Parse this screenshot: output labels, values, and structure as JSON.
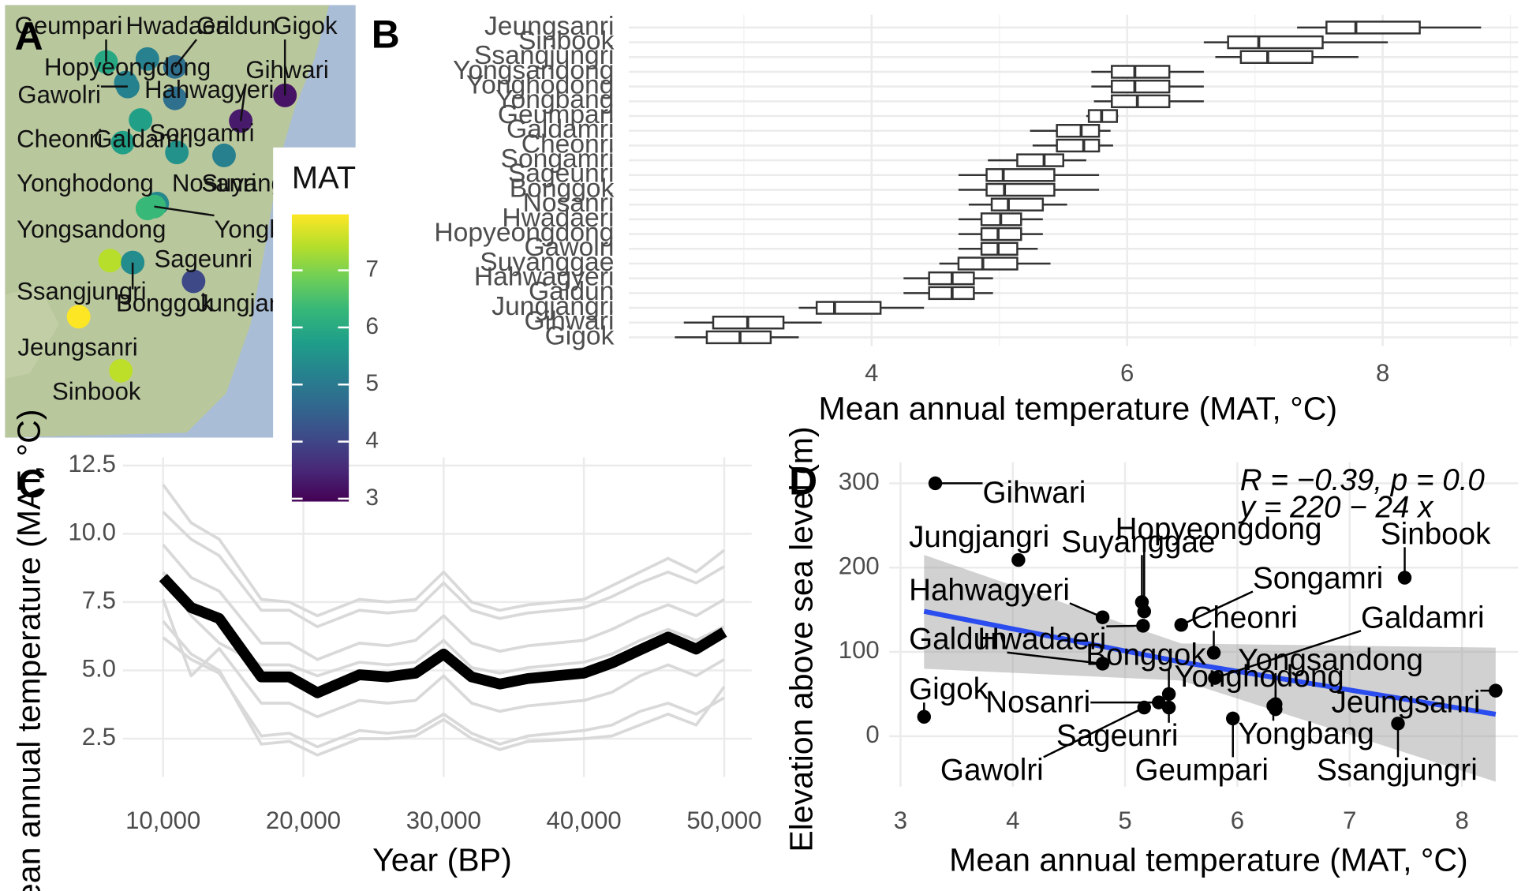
{
  "chart_data": [
    {
      "type": "map",
      "panel_label": "A",
      "legend_title": "MAT",
      "colorbar_lim": [
        2.95,
        7.98
      ],
      "colorbar_ticks": [
        3,
        4,
        5,
        6,
        7
      ],
      "sites": [
        "Geumpari",
        "Hwadaeri",
        "Galdun",
        "Gigok",
        "Hopyeongdong",
        "Gihwari",
        "Gawolri",
        "Hahwagyeri",
        "Cheonri",
        "Galdamri",
        "Songamri",
        "Yonghodong",
        "Nosanri",
        "Suyanggae",
        "Yongsandong",
        "Yongbang",
        "Sageunri",
        "Ssangjungri",
        "Bonggok",
        "Jungjangri",
        "Jeungsanri",
        "Sinbook"
      ]
    },
    {
      "type": "boxplot",
      "panel_label": "B",
      "x_label": "Mean annual temperature (MAT, °C)",
      "categories": [
        "Jeungsanri",
        "Sinbook",
        "Ssangjungri",
        "Yongsandong",
        "Yonghodong",
        "Yongbang",
        "Geumpari",
        "Galdamri",
        "Cheonri",
        "Songamri",
        "Sageunri",
        "Bonggok",
        "Nosanri",
        "Hwadaeri",
        "Hopyeongdong",
        "Gawolri",
        "Suyanggae",
        "Hahwagyeri",
        "Galdun",
        "Jungjangri",
        "Gihwari",
        "Gigok"
      ],
      "min": [
        7.33,
        6.6,
        6.69,
        5.72,
        5.72,
        5.74,
        5.68,
        5.24,
        5.26,
        4.91,
        4.68,
        4.68,
        4.76,
        4.68,
        4.68,
        4.68,
        4.53,
        4.25,
        4.25,
        3.43,
        2.53,
        2.46
      ],
      "q1": [
        7.56,
        6.79,
        6.89,
        5.88,
        5.88,
        5.88,
        5.7,
        5.45,
        5.45,
        5.14,
        4.9,
        4.9,
        4.94,
        4.86,
        4.86,
        4.86,
        4.68,
        4.45,
        4.45,
        3.57,
        2.76,
        2.71
      ],
      "median": [
        7.79,
        7.03,
        7.1,
        6.06,
        6.06,
        6.08,
        5.8,
        5.64,
        5.66,
        5.35,
        5.03,
        5.04,
        5.07,
        5.01,
        4.99,
        4.99,
        4.87,
        4.63,
        4.63,
        3.71,
        3.03,
        2.97
      ],
      "q3": [
        8.29,
        7.53,
        7.45,
        6.33,
        6.33,
        6.33,
        5.92,
        5.78,
        5.78,
        5.5,
        5.43,
        5.43,
        5.34,
        5.17,
        5.17,
        5.14,
        5.14,
        4.8,
        4.8,
        4.07,
        3.31,
        3.21
      ],
      "max": [
        8.77,
        8.04,
        7.81,
        6.6,
        6.6,
        6.6,
        5.93,
        5.87,
        5.89,
        5.68,
        5.78,
        5.78,
        5.53,
        5.34,
        5.34,
        5.3,
        5.4,
        4.95,
        4.95,
        4.41,
        3.61,
        3.43
      ],
      "xlim": [
        2.1,
        9.06
      ],
      "xticks": [
        4,
        6,
        8
      ],
      "minor_xticks": [
        3,
        5,
        7,
        9
      ],
      "grid": true
    },
    {
      "type": "line",
      "panel_label": "C",
      "x_label": "Year (BP)",
      "y_label": "Mean annual temperature (MAT, °C)",
      "x": [
        10000,
        12000,
        14000,
        17000,
        19000,
        21000,
        24000,
        26000,
        28000,
        30000,
        32000,
        34000,
        36000,
        40000,
        42000,
        44000,
        46000,
        48000,
        50000
      ],
      "series": [
        {
          "color": "#d9d9d9",
          "values": [
            11.8,
            10.4,
            9.8,
            7.6,
            7.5,
            7.0,
            7.6,
            7.5,
            7.6,
            8.6,
            7.5,
            7.2,
            7.4,
            7.6,
            8.1,
            8.6,
            9.1,
            8.6,
            9.4
          ]
        },
        {
          "color": "#d9d9d9",
          "values": [
            10.8,
            9.8,
            9.2,
            7.2,
            7.2,
            6.6,
            7.2,
            7.1,
            7.2,
            8.2,
            7.2,
            6.9,
            7.1,
            7.3,
            7.7,
            8.2,
            8.6,
            8.2,
            8.8
          ]
        },
        {
          "color": "#d9d9d9",
          "values": [
            9.6,
            8.4,
            7.9,
            6.0,
            6.0,
            5.4,
            6.0,
            5.9,
            6.1,
            7.0,
            6.0,
            5.7,
            5.9,
            6.1,
            6.5,
            7.0,
            7.4,
            7.0,
            7.6
          ]
        },
        {
          "color": "#d9d9d9",
          "values": [
            8.6,
            7.0,
            6.0,
            5.2,
            5.2,
            4.8,
            5.3,
            5.2,
            5.3,
            6.1,
            5.1,
            4.9,
            5.1,
            5.3,
            5.6,
            6.1,
            6.5,
            6.1,
            6.6
          ]
        },
        {
          "color": "#d9d9d9",
          "values": [
            7.6,
            4.8,
            5.8,
            3.8,
            3.8,
            3.3,
            3.9,
            3.8,
            3.9,
            4.8,
            3.8,
            3.5,
            3.7,
            3.9,
            4.2,
            4.8,
            5.2,
            4.8,
            5.4
          ]
        },
        {
          "color": "#d9d9d9",
          "values": [
            6.8,
            5.6,
            5.0,
            2.3,
            2.4,
            1.9,
            2.5,
            2.5,
            2.6,
            3.2,
            2.5,
            2.1,
            2.4,
            2.5,
            2.6,
            3.0,
            3.4,
            3.0,
            4.4
          ]
        },
        {
          "color": "#d9d9d9",
          "values": [
            6.2,
            5.4,
            4.9,
            2.6,
            2.7,
            2.2,
            2.8,
            2.7,
            2.8,
            3.4,
            2.7,
            2.3,
            2.6,
            2.8,
            3.0,
            3.5,
            3.8,
            3.4,
            4.0
          ]
        },
        {
          "color": "#000000",
          "values": [
            8.4,
            7.3,
            6.9,
            4.76,
            4.76,
            4.18,
            4.84,
            4.76,
            4.9,
            5.6,
            4.76,
            4.5,
            4.7,
            4.9,
            5.27,
            5.75,
            6.22,
            5.78,
            6.4
          ]
        }
      ],
      "xlim": [
        7130,
        51960
      ],
      "ylim": [
        1.1,
        12.8
      ],
      "xticks": [
        {
          "value": 10000,
          "label": "10,000"
        },
        {
          "value": 20000,
          "label": "20,000"
        },
        {
          "value": 30000,
          "label": "30,000"
        },
        {
          "value": 40000,
          "label": "40,000"
        },
        {
          "value": 50000,
          "label": "50,000"
        }
      ],
      "yticks": [
        2.5,
        {
          "value": 5,
          "label": "5.0"
        },
        7.5,
        {
          "value": 10,
          "label": "10.0"
        },
        12.5
      ],
      "grid": true
    },
    {
      "type": "scatter",
      "panel_label": "D",
      "x_label": "Mean annual temperature (MAT, °C)",
      "y_label": "Elevation above sea level (m)",
      "labels": [
        "Gihwari",
        "Jungjangri",
        "Suyanggae",
        "Hopyeongdong",
        "Sinbook",
        "Songamri",
        "Hahwagyeri",
        "Hwadaeri",
        "Galdun",
        "Cheonri",
        "Galdamri",
        "Yongsandong",
        "Yonghodong",
        "Yongbang",
        "Bonggok",
        "Nosanri",
        "Sageunri",
        "Gawolri",
        "Geumpari",
        "Ssangjungri",
        "Jeungsanri",
        "Gigok"
      ],
      "x": [
        3.31,
        4.05,
        5.15,
        5.17,
        7.49,
        5.5,
        4.8,
        5.16,
        4.8,
        5.79,
        5.8,
        6.34,
        6.34,
        6.32,
        5.39,
        5.3,
        5.39,
        5.17,
        5.96,
        7.43,
        8.3,
        3.21
      ],
      "y": [
        300,
        209,
        159,
        148,
        188,
        132,
        141,
        131,
        86,
        99,
        69,
        38,
        32,
        36,
        50,
        40,
        34,
        34,
        21,
        15,
        54,
        23
      ],
      "color": "#000000",
      "regression": {
        "color": "#2b4cee",
        "x": [
          3.21,
          5.5,
          8.3
        ],
        "y": [
          148,
          88,
          26
        ],
        "ci_upper": [
          215,
          110,
          105
        ],
        "ci_lower": [
          80,
          66,
          -54
        ]
      },
      "annotations": [
        "R = −0.39, p = 0.0",
        "y = 220 − 24 x"
      ],
      "xlim": [
        2.9,
        8.5
      ],
      "ylim": [
        -60,
        325
      ],
      "xticks": [
        3,
        4,
        5,
        6,
        7,
        8
      ],
      "yticks": [
        0,
        100,
        200,
        300
      ],
      "grid": true
    }
  ]
}
